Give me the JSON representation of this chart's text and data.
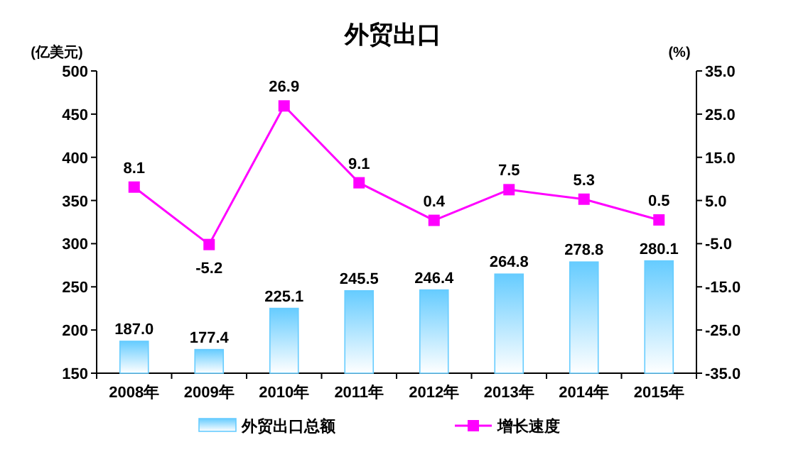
{
  "chart_data": {
    "type": "bar",
    "title": "外贸出口",
    "ylabel": "(亿美元)",
    "y2label": "(%)",
    "categories": [
      "2008年",
      "2009年",
      "2010年",
      "2011年",
      "2012年",
      "2013年",
      "2014年",
      "2015年"
    ],
    "series": [
      {
        "name": "外贸出口总额",
        "color": "#66ccff",
        "values": [
          187.0,
          177.4,
          225.1,
          245.5,
          246.4,
          264.8,
          278.8,
          280.1
        ],
        "value_labels": [
          "187.0",
          "177.4",
          "225.1",
          "245.5",
          "246.4",
          "264.8",
          "278.8",
          "280.1"
        ]
      },
      {
        "name": "增长速度",
        "type": "line",
        "axis": "y2",
        "color": "#ff00ff",
        "marker": "square",
        "values": [
          8.1,
          -5.2,
          26.9,
          9.1,
          0.4,
          7.5,
          5.3,
          0.5
        ],
        "value_labels": [
          "8.1",
          "-5.2",
          "26.9",
          "9.1",
          "0.4",
          "7.5",
          "5.3",
          "0.5"
        ]
      }
    ],
    "ylim": [
      150,
      500
    ],
    "yticks": [
      150,
      200,
      250,
      300,
      350,
      400,
      450,
      500
    ],
    "y2lim": [
      -35,
      35
    ],
    "y2ticks": [
      {
        "value": -35,
        "label": "-35.0"
      },
      {
        "value": -25,
        "label": "-25.0"
      },
      {
        "value": -15,
        "label": "-15.0"
      },
      {
        "value": -5,
        "label": "-5.0"
      },
      {
        "value": 5,
        "label": "5.0"
      },
      {
        "value": 15,
        "label": "15.0"
      },
      {
        "value": 25,
        "label": "25.0"
      },
      {
        "value": 35,
        "label": "35.0"
      }
    ],
    "grid": false,
    "legend": "bottom"
  }
}
